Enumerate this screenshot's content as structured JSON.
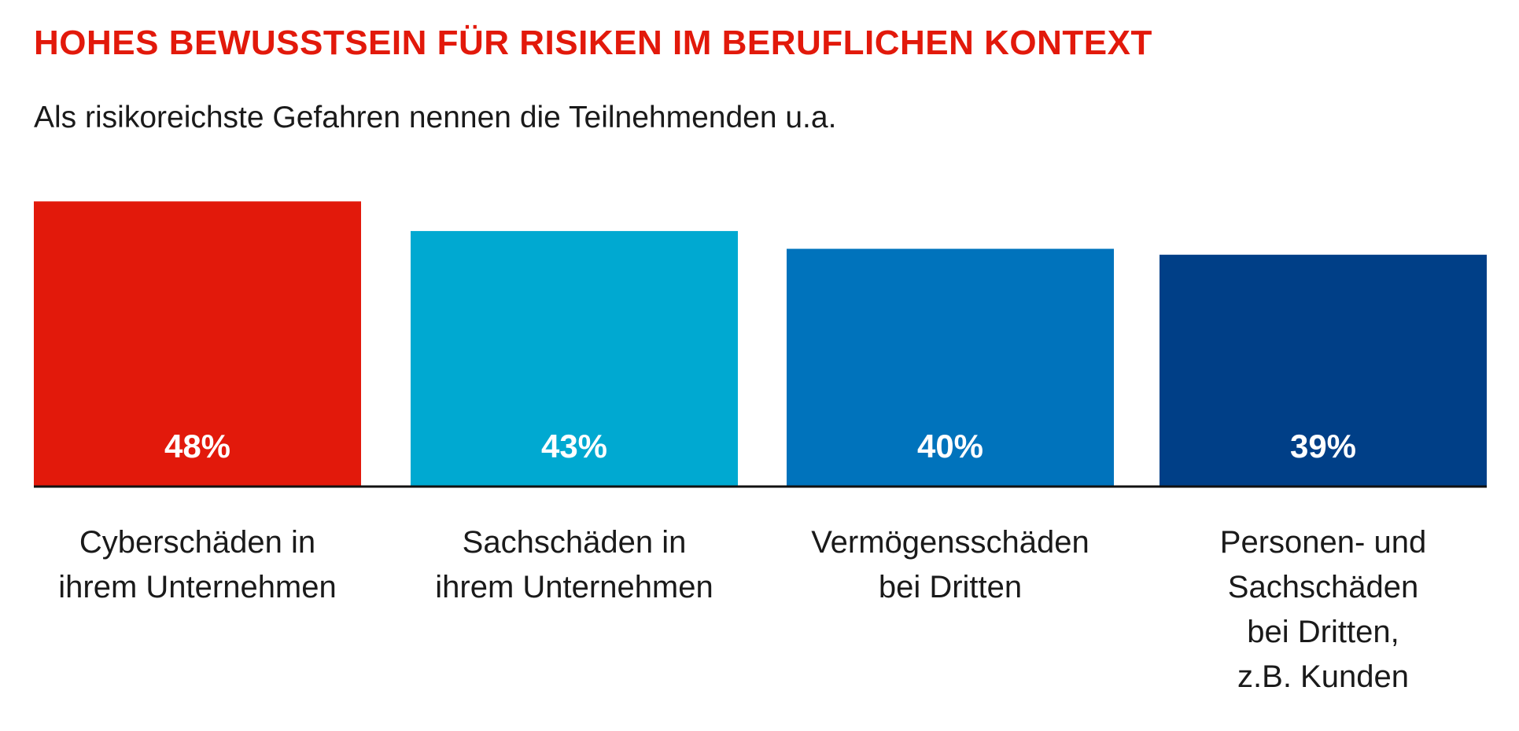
{
  "chart_data": {
    "type": "bar",
    "title": "HOHES BEWUSSTSEIN FÜR RISIKEN IM BERUFLICHEN KONTEXT",
    "subtitle": "Als risikoreichste Gefahren nennen die Teilnehmenden u.a.",
    "categories": [
      "Cyberschäden in\nihrem Unternehmen",
      "Sachschäden in\nihrem Unternehmen",
      "Vermögensschäden\nbei Dritten",
      "Personen- und\nSachschäden\nbei Dritten,\nz.B. Kunden"
    ],
    "values": [
      48,
      43,
      40,
      39
    ],
    "value_labels": [
      "48%",
      "43%",
      "40%",
      "39%"
    ],
    "colors": [
      "#e2190b",
      "#00a9d1",
      "#0073bc",
      "#003f87"
    ],
    "title_color": "#e2190b",
    "ylim": [
      0,
      82
    ],
    "grid": false,
    "xlabel": "",
    "ylabel": ""
  }
}
